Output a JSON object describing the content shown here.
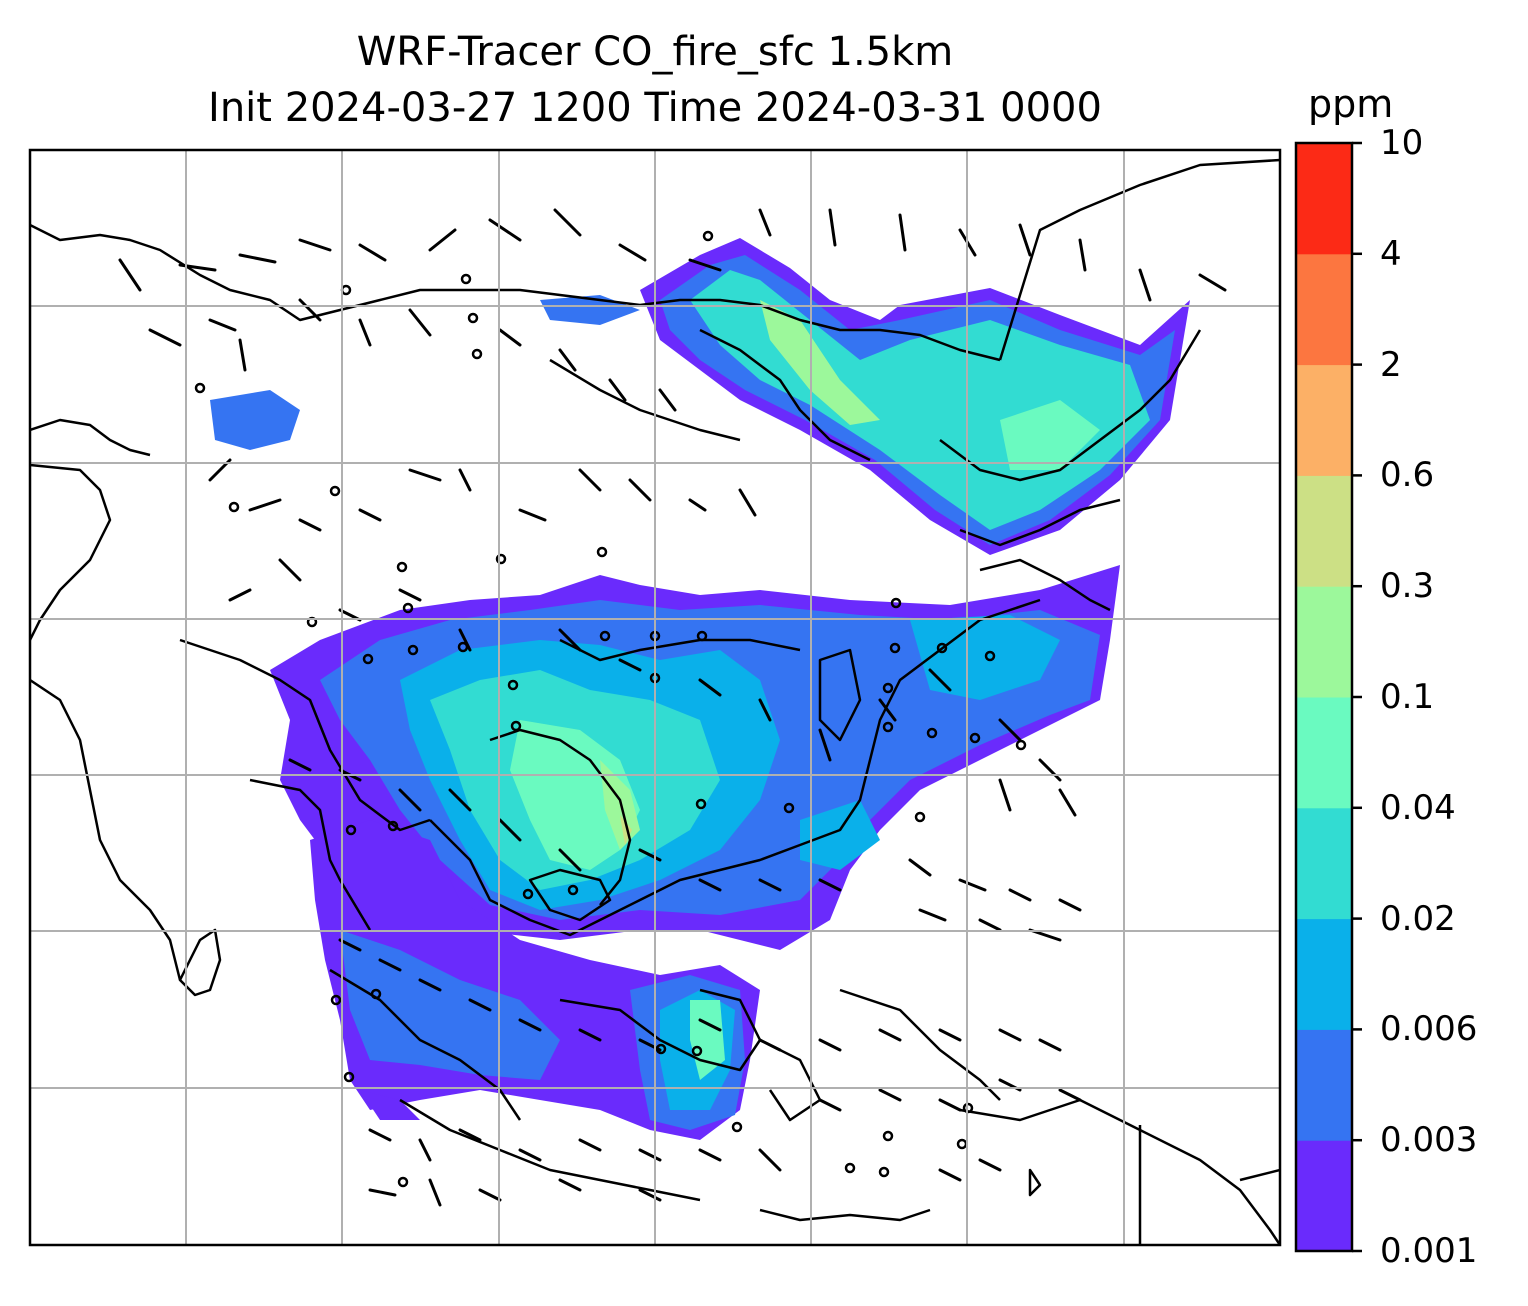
{
  "title": {
    "line1": "WRF-Tracer CO_fire_sfc 1.5km",
    "line2": "Init 2024-03-27 1200 Time 2024-03-31 0000"
  },
  "colorbar": {
    "unit": "ppm",
    "levels": [
      "0.001",
      "0.003",
      "0.006",
      "0.02",
      "0.04",
      "0.1",
      "0.3",
      "0.6",
      "2",
      "4",
      "10"
    ],
    "colors": [
      "#6a2bfc",
      "#3574f2",
      "#0ab0ea",
      "#32dcd2",
      "#6afac0",
      "#9cf89b",
      "#cce085",
      "#fcb066",
      "#fc7640",
      "#fc2a16"
    ]
  },
  "map": {
    "gridlines": true,
    "coastline_color": "#000000",
    "plume_regions": [
      "northeast Asia",
      "southeast Asia mainland",
      "maritime southeast Asia"
    ],
    "wind_barbs": true
  }
}
